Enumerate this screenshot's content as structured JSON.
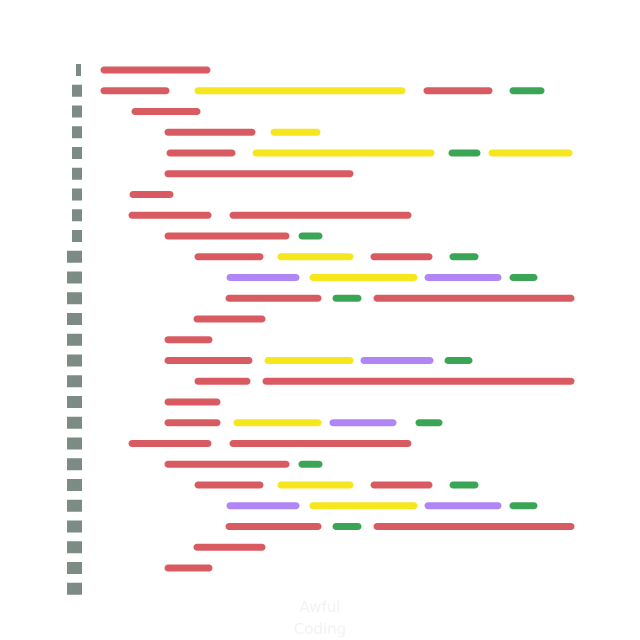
{
  "caption": {
    "line1": "Awful",
    "line2": "Coding"
  },
  "colors": {
    "red": "#d95b62",
    "yellow": "#f5e61d",
    "green": "#3aa655",
    "purple": "#b085f5",
    "gutter": "#7c8b84"
  },
  "gutter_marks": [
    "thin",
    "wide",
    "wide",
    "wide",
    "wide",
    "wide",
    "wide",
    "wide",
    "wide",
    "full",
    "full",
    "full",
    "full",
    "full",
    "full",
    "full",
    "full",
    "full",
    "full",
    "full",
    "full",
    "full",
    "full",
    "full",
    "full",
    "full"
  ],
  "code_lines": [
    [
      [
        "red",
        104,
        207
      ]
    ],
    [
      [
        "red",
        104,
        166
      ],
      [
        "yellow",
        198,
        402
      ],
      [
        "red",
        427,
        489
      ],
      [
        "green",
        513,
        541
      ]
    ],
    [
      [
        "red",
        135,
        197
      ]
    ],
    [
      [
        "red",
        168,
        252
      ],
      [
        "yellow",
        274,
        317
      ]
    ],
    [
      [
        "red",
        170,
        232
      ],
      [
        "yellow",
        256,
        431
      ],
      [
        "green",
        452,
        477
      ],
      [
        "yellow",
        492,
        569
      ]
    ],
    [
      [
        "red",
        168,
        350
      ]
    ],
    [
      [
        "red",
        133,
        170
      ]
    ],
    [
      [
        "red",
        132,
        208
      ],
      [
        "red",
        233,
        408
      ]
    ],
    [
      [
        "red",
        168,
        286
      ],
      [
        "green",
        302,
        319
      ]
    ],
    [
      [
        "red",
        198,
        260
      ],
      [
        "yellow",
        281,
        350
      ],
      [
        "red",
        374,
        429
      ],
      [
        "green",
        453,
        475
      ]
    ],
    [
      [
        "purple",
        230,
        296
      ],
      [
        "yellow",
        313,
        414
      ],
      [
        "purple",
        428,
        498
      ],
      [
        "green",
        513,
        534
      ]
    ],
    [
      [
        "red",
        229,
        318
      ],
      [
        "green",
        336,
        358
      ],
      [
        "red",
        377,
        571
      ]
    ],
    [
      [
        "red",
        197,
        262
      ]
    ],
    [
      [
        "red",
        168,
        209
      ]
    ],
    [
      [
        "red",
        168,
        249
      ],
      [
        "yellow",
        268,
        350
      ],
      [
        "purple",
        364,
        430
      ],
      [
        "green",
        448,
        469
      ]
    ],
    [
      [
        "red",
        198,
        247
      ],
      [
        "red",
        266,
        571
      ]
    ],
    [
      [
        "red",
        168,
        217
      ]
    ],
    [
      [
        "red",
        168,
        217
      ],
      [
        "yellow",
        237,
        318
      ],
      [
        "purple",
        333,
        393
      ],
      [
        "green",
        419,
        439
      ]
    ],
    [
      [
        "red",
        132,
        208
      ],
      [
        "red",
        233,
        408
      ]
    ],
    [
      [
        "red",
        168,
        286
      ],
      [
        "green",
        302,
        319
      ]
    ],
    [
      [
        "red",
        198,
        260
      ],
      [
        "yellow",
        281,
        350
      ],
      [
        "red",
        374,
        429
      ],
      [
        "green",
        453,
        475
      ]
    ],
    [
      [
        "purple",
        230,
        296
      ],
      [
        "yellow",
        313,
        414
      ],
      [
        "purple",
        428,
        498
      ],
      [
        "green",
        513,
        534
      ]
    ],
    [
      [
        "red",
        229,
        318
      ],
      [
        "green",
        336,
        358
      ],
      [
        "red",
        377,
        571
      ]
    ],
    [
      [
        "red",
        197,
        262
      ]
    ],
    [
      [
        "red",
        168,
        209
      ]
    ]
  ]
}
